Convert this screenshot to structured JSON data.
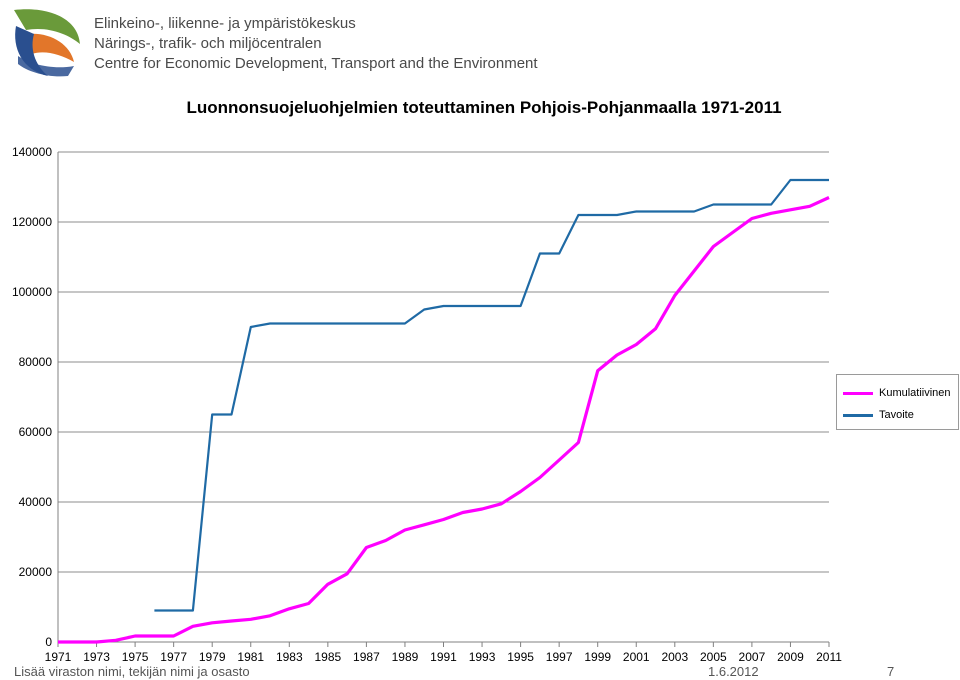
{
  "header": {
    "org_lines": [
      "Elinkeino-, liikenne- ja ympäristökeskus",
      "Närings-, trafik- och miljöcentralen",
      "Centre for Economic Development, Transport and the Environment"
    ],
    "logo_colors": {
      "green": "#6a9a3a",
      "orange": "#e2762a",
      "blue": "#2a4f8f"
    }
  },
  "footer": {
    "left_text": "Lisää viraston nimi, tekijän nimi ja osasto",
    "date": "1.6.2012",
    "page": "7"
  },
  "chart_data": {
    "type": "line",
    "title": "Luonnonsuojeluohjelmien toteuttaminen Pohjois-Pohjanmaalla 1971-2011",
    "xlabel": "",
    "ylabel": "",
    "xlim": [
      1971,
      2011
    ],
    "ylim": [
      0,
      140000
    ],
    "y_ticks": [
      "0",
      "20000",
      "40000",
      "60000",
      "80000",
      "100000",
      "120000",
      "140000"
    ],
    "x_ticks": [
      "1971",
      "1973",
      "1975",
      "1977",
      "1979",
      "1981",
      "1983",
      "1985",
      "1987",
      "1989",
      "1991",
      "1993",
      "1995",
      "1997",
      "1999",
      "2001",
      "2003",
      "2005",
      "2007",
      "2009",
      "2011"
    ],
    "grid": true,
    "legend_position": "right",
    "series": [
      {
        "name": "Kumulatiivinen",
        "color": "#ff00ff",
        "x": [
          1971,
          1972,
          1973,
          1974,
          1975,
          1976,
          1977,
          1978,
          1979,
          1980,
          1981,
          1982,
          1983,
          1984,
          1985,
          1986,
          1987,
          1988,
          1989,
          1990,
          1991,
          1992,
          1993,
          1994,
          1995,
          1996,
          1997,
          1998,
          1999,
          2000,
          2001,
          2002,
          2003,
          2004,
          2005,
          2006,
          2007,
          2008,
          2009,
          2010,
          2011
        ],
        "values": [
          0,
          0,
          0,
          500,
          1700,
          1700,
          1700,
          4500,
          5500,
          6000,
          6500,
          7500,
          9500,
          11000,
          16500,
          19500,
          27000,
          29000,
          32000,
          33500,
          35000,
          37000,
          38000,
          39500,
          43000,
          47000,
          52000,
          57000,
          77500,
          82000,
          85000,
          89500,
          99000,
          106000,
          113000,
          117000,
          121000,
          122500,
          123500,
          124500,
          127000
        ]
      },
      {
        "name": "Tavoite",
        "color": "#1f6aa5",
        "x": [
          1976,
          1977,
          1978,
          1979,
          1980,
          1981,
          1982,
          1983,
          1984,
          1985,
          1986,
          1987,
          1988,
          1989,
          1990,
          1991,
          1992,
          1993,
          1994,
          1995,
          1996,
          1997,
          1998,
          1999,
          2000,
          2001,
          2002,
          2003,
          2004,
          2005,
          2006,
          2007,
          2008,
          2009,
          2010,
          2011
        ],
        "values": [
          9000,
          9000,
          9000,
          65000,
          65000,
          90000,
          91000,
          91000,
          91000,
          91000,
          91000,
          91000,
          91000,
          91000,
          95000,
          96000,
          96000,
          96000,
          96000,
          96000,
          111000,
          111000,
          122000,
          122000,
          122000,
          123000,
          123000,
          123000,
          123000,
          125000,
          125000,
          125000,
          125000,
          132000,
          132000,
          132000
        ]
      }
    ]
  }
}
